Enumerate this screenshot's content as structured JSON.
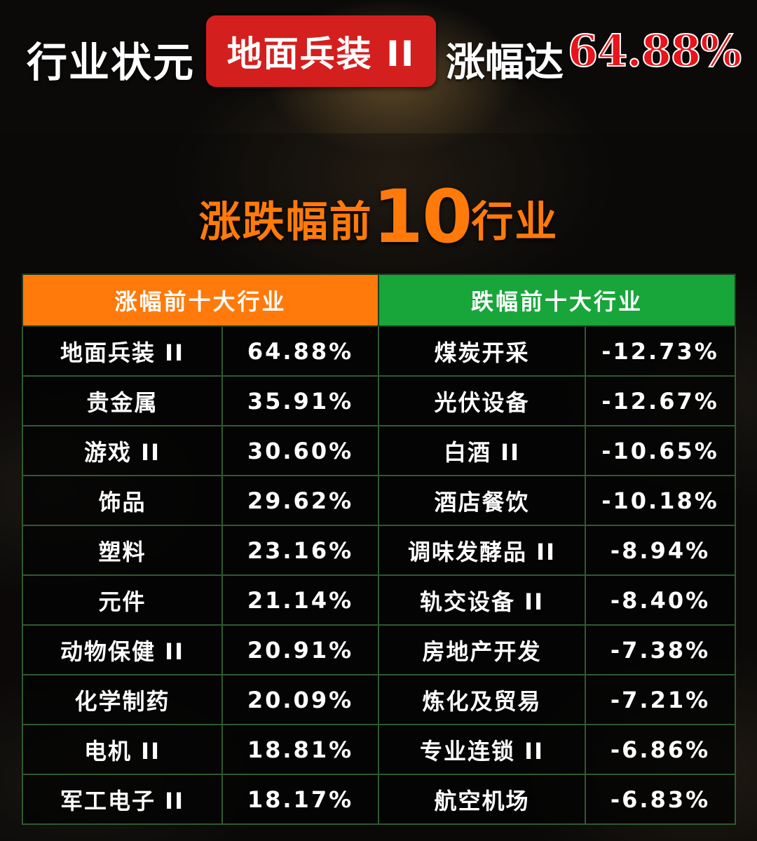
{
  "header": {
    "prefix": "行业状元",
    "badge": "地面兵装 II",
    "suffix": "涨幅达",
    "value": "64.88%"
  },
  "title": {
    "part1": "涨跌幅前",
    "number": "10",
    "part2": "行业"
  },
  "table": {
    "gainers_header": "涨幅前十大行业",
    "losers_header": "跌幅前十大行业",
    "gainers": [
      {
        "name": "地面兵装 II",
        "change": "64.88%"
      },
      {
        "name": "贵金属",
        "change": "35.91%"
      },
      {
        "name": "游戏 II",
        "change": "30.60%"
      },
      {
        "name": "饰品",
        "change": "29.62%"
      },
      {
        "name": "塑料",
        "change": "23.16%"
      },
      {
        "name": "元件",
        "change": "21.14%"
      },
      {
        "name": "动物保健 II",
        "change": "20.91%"
      },
      {
        "name": "化学制药",
        "change": "20.09%"
      },
      {
        "name": "电机 II",
        "change": "18.81%"
      },
      {
        "name": "军工电子 II",
        "change": "18.17%"
      }
    ],
    "losers": [
      {
        "name": "煤炭开采",
        "change": "-12.73%"
      },
      {
        "name": "光伏设备",
        "change": "-12.67%"
      },
      {
        "name": "白酒 II",
        "change": "-10.65%"
      },
      {
        "name": "酒店餐饮",
        "change": "-10.18%"
      },
      {
        "name": "调味发酵品 II",
        "change": "-8.94%"
      },
      {
        "name": "轨交设备 II",
        "change": "-8.40%"
      },
      {
        "name": "房地产开发",
        "change": "-7.38%"
      },
      {
        "name": "炼化及贸易",
        "change": "-7.21%"
      },
      {
        "name": "专业连锁 II",
        "change": "-6.86%"
      },
      {
        "name": "航空机场",
        "change": "-6.83%"
      }
    ]
  },
  "colors": {
    "gainers_header": "#ff7a0a",
    "losers_header": "#18a53a",
    "badge": "#d41f1f",
    "highlight_value": "#e8141b"
  }
}
